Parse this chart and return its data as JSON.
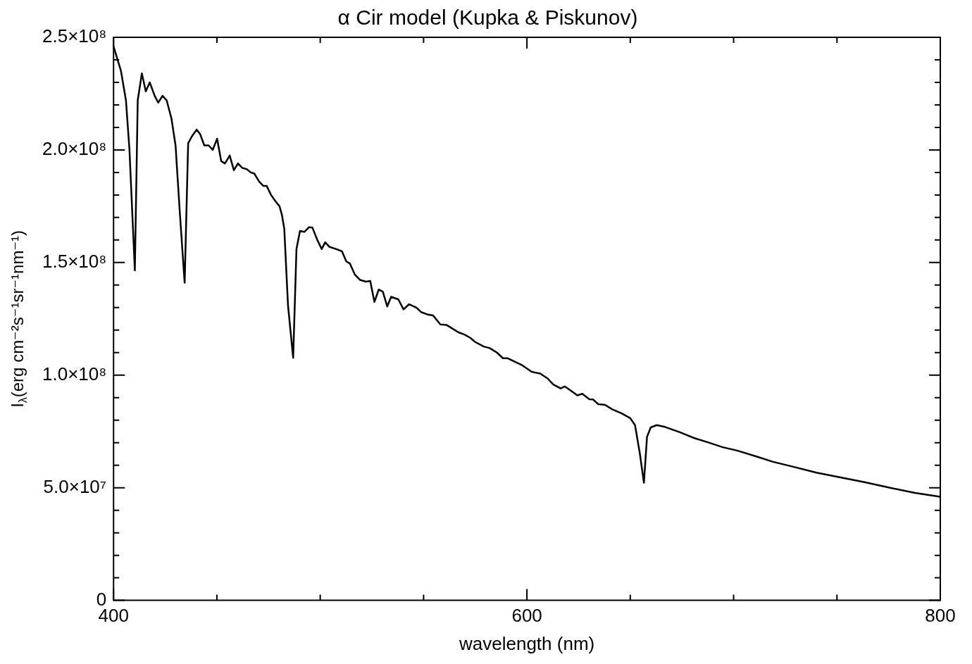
{
  "chart_data": {
    "type": "line",
    "title": "α Cir model (Kupka & Piskunov)",
    "xlabel": "wavelength (nm)",
    "ylabel": "I$_{λ}$(erg cm⁻²s⁻¹sr⁻¹nm⁻¹)",
    "color": "#000000",
    "marker": "none",
    "line_style": "solid",
    "x": [
      400,
      403.6,
      406,
      407.7,
      410.3,
      411.7,
      413.7,
      415.6,
      417.5,
      419.9,
      421.6,
      423.7,
      425.7,
      428,
      430,
      432,
      434.4,
      436.1,
      437.9,
      440.2,
      441.9,
      443.9,
      446,
      448,
      450.1,
      452.1,
      453.9,
      456.2,
      458.2,
      460.2,
      462.3,
      464.4,
      466.4,
      468.1,
      470.4,
      472.5,
      474.1,
      476.2,
      478.5,
      480.3,
      481.5,
      482.6,
      484.4,
      486.9,
      488.5,
      490.2,
      492.3,
      494.6,
      496.2,
      498.6,
      500.7,
      502.4,
      504.4,
      507.6,
      510.5,
      512.6,
      514.4,
      516.7,
      519.2,
      522.1,
      524.2,
      526.2,
      528.3,
      530.3,
      532.4,
      534.3,
      537.8,
      540.3,
      543,
      546.5,
      548.8,
      551.7,
      554.6,
      558.1,
      561,
      563.4,
      566.9,
      569.8,
      572.7,
      575,
      579.1,
      582,
      585.5,
      588.4,
      590.7,
      594.8,
      597.7,
      602.3,
      606.4,
      609.9,
      612.8,
      616.3,
      618.3,
      621,
      624.4,
      626.8,
      630.2,
      632,
      634.5,
      637.8,
      641.3,
      645.9,
      650,
      652.3,
      654.6,
      656.6,
      658.1,
      659.9,
      662.8,
      666.8,
      673.8,
      680.8,
      687.8,
      694.7,
      701.7,
      711,
      719.1,
      728.5,
      740.1,
      751.7,
      763.3,
      776.1,
      787.7,
      800
    ],
    "values": [
      246000000,
      235000000,
      222000000,
      200000000,
      146500000,
      222000000,
      234000000,
      226000000,
      230000000,
      224000000,
      221000000,
      224000000,
      222000000,
      214000000,
      202000000,
      173000000,
      141000000,
      203000000,
      206000000,
      209000000,
      207000000,
      202000000,
      202000000,
      200000000,
      205000000,
      195000000,
      194000000,
      197500000,
      191000000,
      194000000,
      192000000,
      191500000,
      190000000,
      189500000,
      186000000,
      184000000,
      184000000,
      180000000,
      177000000,
      175000000,
      171000000,
      165000000,
      131000000,
      107700000,
      156000000,
      164000000,
      163600000,
      165700000,
      165500000,
      160000000,
      156000000,
      159000000,
      157000000,
      156000000,
      155000000,
      150500000,
      149500000,
      144700000,
      142300000,
      141500000,
      141800000,
      132500000,
      138000000,
      137000000,
      130500000,
      134800000,
      133600000,
      129200000,
      131500000,
      130000000,
      128000000,
      127000000,
      126500000,
      122500000,
      122300000,
      121000000,
      119000000,
      118000000,
      116500000,
      114700000,
      112700000,
      112000000,
      110000000,
      107500000,
      107500000,
      105700000,
      104400000,
      101500000,
      100700000,
      98600000,
      95800000,
      94100000,
      95000000,
      93300000,
      91000000,
      91700000,
      89300000,
      89200000,
      87100000,
      86800000,
      84800000,
      83000000,
      80900000,
      77800000,
      65400000,
      52200000,
      72600000,
      76800000,
      77800000,
      77000000,
      74700000,
      72100000,
      70100000,
      68000000,
      66500000,
      63900000,
      61500000,
      59400000,
      56700000,
      54600000,
      52500000,
      49900000,
      47700000,
      46000000
    ],
    "xlim": [
      400,
      800
    ],
    "ylim": [
      0,
      250000000
    ],
    "xticks": [
      400,
      {
        "value": 450,
        "label": null
      },
      {
        "value": 500,
        "label": null
      },
      {
        "value": 550,
        "label": null
      },
      600,
      {
        "value": 650,
        "label": null
      },
      {
        "value": 700,
        "label": null
      },
      {
        "value": 750,
        "label": null
      },
      800
    ],
    "yticks": [
      0,
      {
        "value": 10000000,
        "label": null
      },
      {
        "value": 20000000,
        "label": null
      },
      {
        "value": 30000000,
        "label": null
      },
      {
        "value": 40000000,
        "label": null
      },
      {
        "value": 50000000,
        "label": "5.0×10⁷"
      },
      {
        "value": 60000000,
        "label": null
      },
      {
        "value": 70000000,
        "label": null
      },
      {
        "value": 80000000,
        "label": null
      },
      {
        "value": 90000000,
        "label": null
      },
      {
        "value": 100000000,
        "label": "1.0×10⁸"
      },
      {
        "value": 110000000,
        "label": null
      },
      {
        "value": 120000000,
        "label": null
      },
      {
        "value": 130000000,
        "label": null
      },
      {
        "value": 140000000,
        "label": null
      },
      {
        "value": 150000000,
        "label": "1.5×10⁸"
      },
      {
        "value": 160000000,
        "label": null
      },
      {
        "value": 170000000,
        "label": null
      },
      {
        "value": 180000000,
        "label": null
      },
      {
        "value": 190000000,
        "label": null
      },
      {
        "value": 200000000,
        "label": "2.0×10⁸"
      },
      {
        "value": 210000000,
        "label": null
      },
      {
        "value": 220000000,
        "label": null
      },
      {
        "value": 230000000,
        "label": null
      },
      {
        "value": 240000000,
        "label": null
      },
      {
        "value": 250000000,
        "label": "2.5×10⁸"
      }
    ]
  }
}
